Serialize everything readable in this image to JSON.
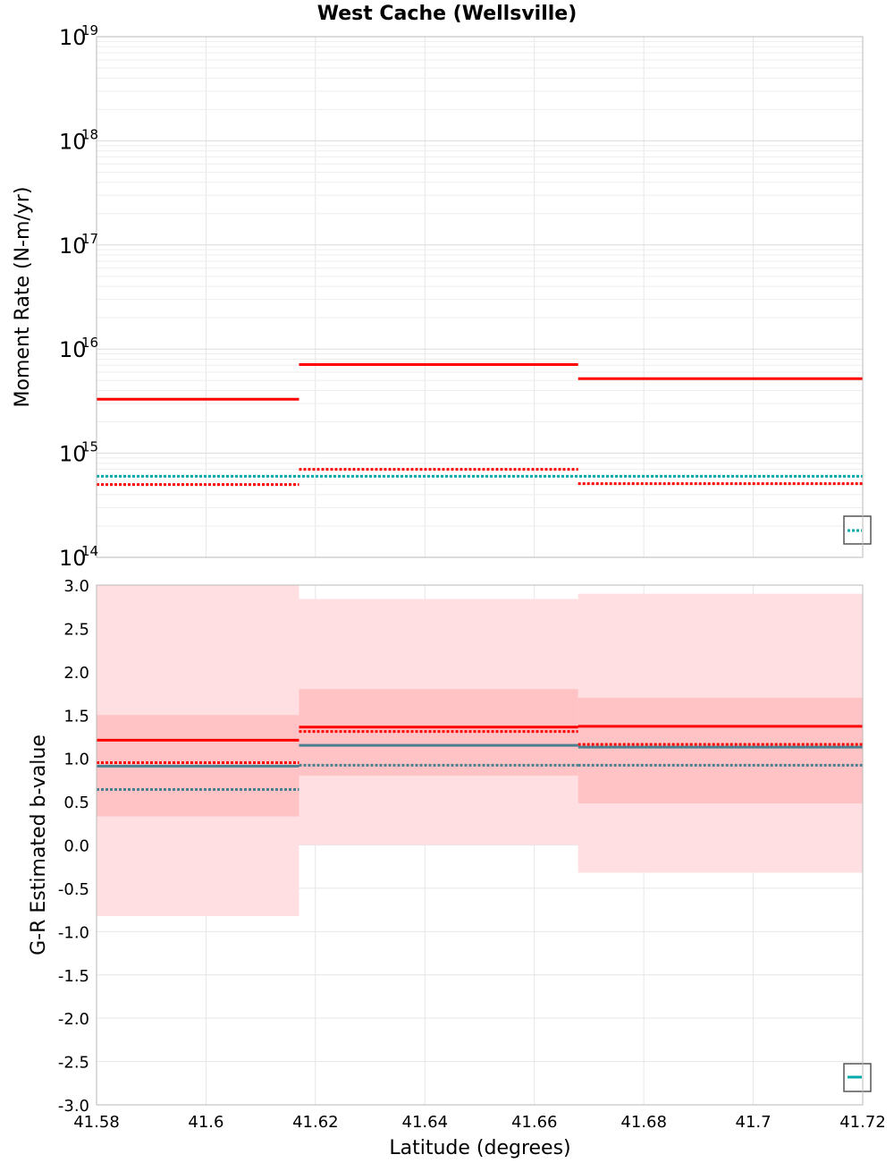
{
  "title": "West Cache (Wellsville)",
  "xlabel": "Latitude (degrees)",
  "colors": {
    "red": "#ff0000",
    "cyan": "#00aaaa",
    "teal": "#4a7f8f",
    "band_light": "#ffdfe1",
    "band_dark": "#ffc3c6",
    "grid": "#e6e6e6",
    "frame": "#b8b8b8"
  },
  "chart_data": [
    {
      "type": "line",
      "panel": "top",
      "ylabel": "Moment Rate (N-m/yr)",
      "yscale": "log",
      "xlim": [
        41.58,
        41.72
      ],
      "ylim": [
        100000000000000.0,
        1e+19
      ],
      "y_tick_base": "10",
      "y_tick_exponents": [
        "14",
        "15",
        "16",
        "17",
        "18",
        "19"
      ],
      "grid": true,
      "legend": "bottom-right (partially visible)",
      "series": [
        {
          "color": "red",
          "style": "solid",
          "segments": [
            {
              "x": [
                41.58,
                41.617
              ],
              "y": 3300000000000000.0
            },
            {
              "x": [
                41.617,
                41.668
              ],
              "y": 7100000000000000.0
            },
            {
              "x": [
                41.668,
                41.72
              ],
              "y": 5200000000000000.0
            }
          ]
        },
        {
          "color": "red",
          "style": "dotted",
          "segments": [
            {
              "x": [
                41.58,
                41.617
              ],
              "y": 500000000000000.0
            },
            {
              "x": [
                41.617,
                41.668
              ],
              "y": 700000000000000.0
            },
            {
              "x": [
                41.668,
                41.72
              ],
              "y": 510000000000000.0
            }
          ]
        },
        {
          "color": "cyan",
          "style": "dotted",
          "segments": [
            {
              "x": [
                41.58,
                41.72
              ],
              "y": 600000000000000.0
            }
          ]
        }
      ]
    },
    {
      "type": "line",
      "panel": "bottom",
      "ylabel": "G-R Estimated b-value",
      "yscale": "linear",
      "xlim": [
        41.58,
        41.72
      ],
      "ylim": [
        -3.0,
        3.0
      ],
      "x_ticks": [
        "41.58",
        "41.6",
        "41.62",
        "41.64",
        "41.66",
        "41.68",
        "41.7",
        "41.72"
      ],
      "y_ticks": [
        "3.0",
        "2.5",
        "2.0",
        "1.5",
        "1.0",
        "0.5",
        "0.0",
        "-0.5",
        "-1.0",
        "-1.5",
        "-2.0",
        "-2.5",
        "-3.0"
      ],
      "grid": true,
      "legend": "bottom-right (partially visible)",
      "bands": [
        {
          "shade": "band_light",
          "x": [
            41.58,
            41.617
          ],
          "y": [
            -0.82,
            3.0
          ]
        },
        {
          "shade": "band_light",
          "x": [
            41.617,
            41.668
          ],
          "y": [
            0.0,
            2.84
          ]
        },
        {
          "shade": "band_light",
          "x": [
            41.668,
            41.72
          ],
          "y": [
            -0.32,
            2.9
          ]
        },
        {
          "shade": "band_dark",
          "x": [
            41.58,
            41.617
          ],
          "y": [
            0.33,
            1.5
          ]
        },
        {
          "shade": "band_dark",
          "x": [
            41.617,
            41.668
          ],
          "y": [
            0.8,
            1.8
          ]
        },
        {
          "shade": "band_dark",
          "x": [
            41.668,
            41.72
          ],
          "y": [
            0.48,
            1.7
          ]
        }
      ],
      "series": [
        {
          "color": "red",
          "style": "solid",
          "segments": [
            {
              "x": [
                41.58,
                41.617
              ],
              "y": 1.21
            },
            {
              "x": [
                41.617,
                41.668
              ],
              "y": 1.36
            },
            {
              "x": [
                41.668,
                41.72
              ],
              "y": 1.37
            }
          ]
        },
        {
          "color": "red",
          "style": "dotted",
          "segments": [
            {
              "x": [
                41.58,
                41.617
              ],
              "y": 0.95
            },
            {
              "x": [
                41.617,
                41.668
              ],
              "y": 1.31
            },
            {
              "x": [
                41.668,
                41.72
              ],
              "y": 1.16
            }
          ]
        },
        {
          "color": "teal",
          "style": "solid",
          "segments": [
            {
              "x": [
                41.58,
                41.617
              ],
              "y": 0.91
            },
            {
              "x": [
                41.617,
                41.668
              ],
              "y": 1.15
            },
            {
              "x": [
                41.668,
                41.72
              ],
              "y": 1.13
            }
          ]
        },
        {
          "color": "teal",
          "style": "dotted",
          "segments": [
            {
              "x": [
                41.58,
                41.617
              ],
              "y": 0.64
            },
            {
              "x": [
                41.617,
                41.668
              ],
              "y": 0.92
            },
            {
              "x": [
                41.668,
                41.72
              ],
              "y": 0.92
            }
          ]
        }
      ]
    }
  ]
}
